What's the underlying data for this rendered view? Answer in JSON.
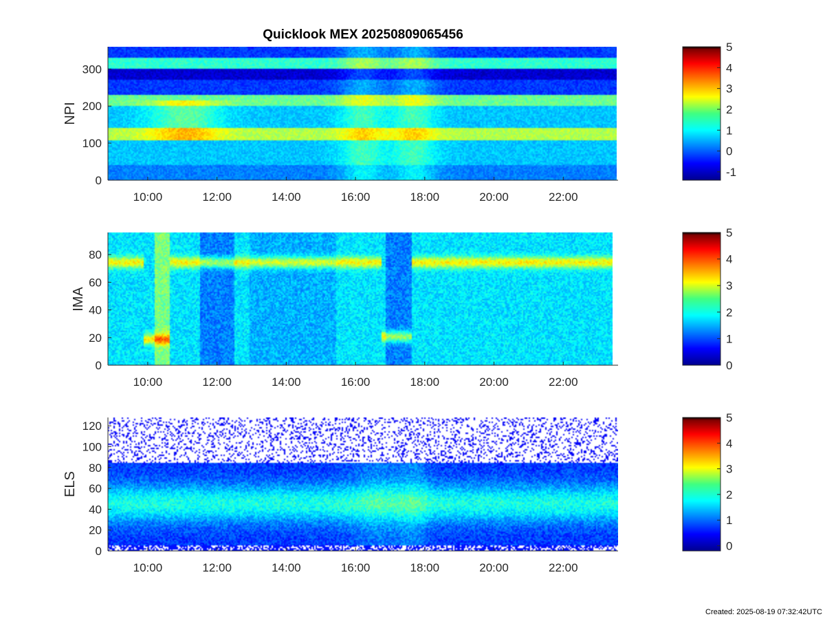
{
  "chart_data": [
    {
      "type": "heatmap",
      "title": "Quicklook MEX 20250809065456",
      "ylabel": "NPI",
      "x_ticks": [
        "10:00",
        "12:00",
        "14:00",
        "16:00",
        "18:00",
        "20:00",
        "22:00"
      ],
      "x_range": [
        "08:51",
        "23:35"
      ],
      "y_ticks": [
        0,
        100,
        200,
        300
      ],
      "ylim": [
        0,
        360
      ],
      "colorbar": {
        "ticks": [
          -1,
          0,
          1,
          2,
          3,
          4,
          5
        ],
        "range": [
          -1.4,
          5
        ]
      }
    },
    {
      "type": "heatmap",
      "title": "",
      "ylabel": "IMA",
      "x_ticks": [
        "10:00",
        "12:00",
        "14:00",
        "16:00",
        "18:00",
        "20:00",
        "22:00"
      ],
      "x_range": [
        "08:51",
        "23:35"
      ],
      "y_ticks": [
        0,
        20,
        40,
        60,
        80
      ],
      "ylim": [
        0,
        96
      ],
      "colorbar": {
        "ticks": [
          0,
          1,
          2,
          3,
          4,
          5
        ],
        "range": [
          0,
          5
        ]
      }
    },
    {
      "type": "heatmap",
      "title": "",
      "ylabel": "ELS",
      "x_ticks": [
        "10:00",
        "12:00",
        "14:00",
        "16:00",
        "18:00",
        "20:00",
        "22:00"
      ],
      "x_range": [
        "08:51",
        "23:35"
      ],
      "y_ticks": [
        0,
        20,
        40,
        60,
        80,
        100,
        120
      ],
      "ylim": [
        0,
        128
      ],
      "colorbar": {
        "ticks": [
          0,
          1,
          2,
          3,
          4,
          5
        ],
        "range": [
          -0.2,
          5
        ]
      }
    }
  ],
  "footer": "Created: 2025-08-19 07:32:42UTC"
}
